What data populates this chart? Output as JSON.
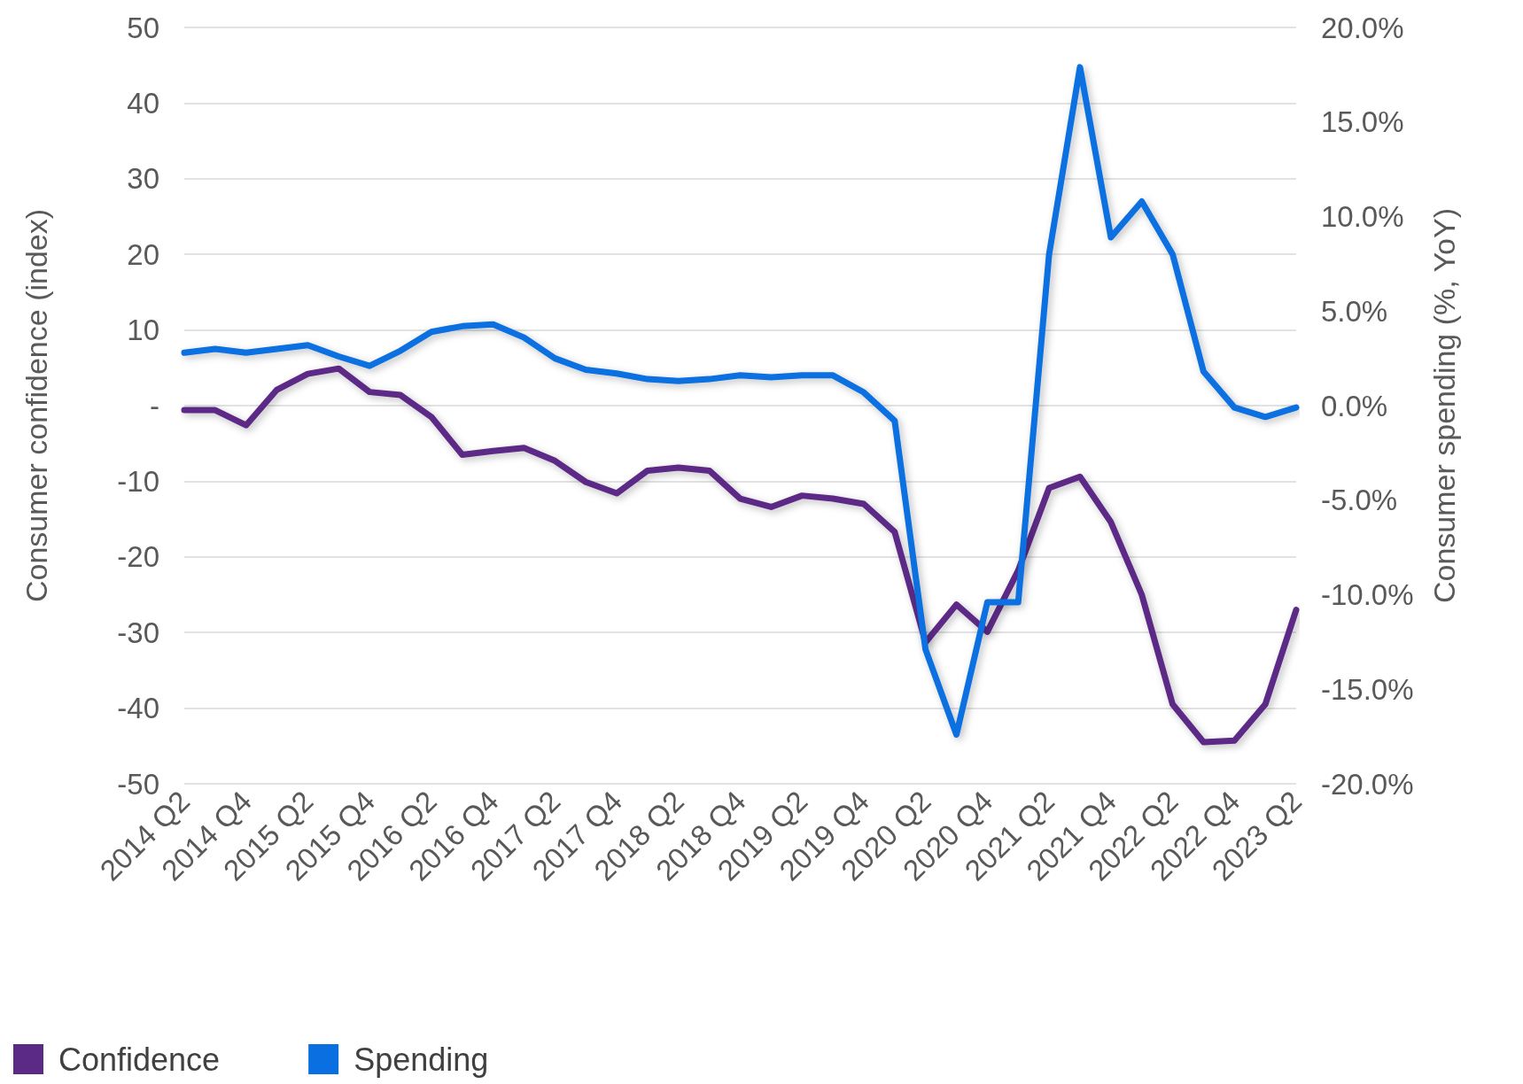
{
  "chart_data": {
    "type": "line",
    "ylabel": "Consumer confidence (index)",
    "y2label": "Consumer spending (%, YoY)",
    "categories": [
      "2014 Q2",
      null,
      "2014 Q4",
      null,
      "2015 Q2",
      null,
      "2015 Q4",
      null,
      "2016 Q2",
      null,
      "2016 Q4",
      null,
      "2017 Q2",
      null,
      "2017 Q4",
      null,
      "2018 Q2",
      null,
      "2018 Q4",
      null,
      "2019 Q2",
      null,
      "2019 Q4",
      null,
      "2020 Q2",
      null,
      "2020 Q4",
      null,
      "2021 Q2",
      null,
      "2021 Q4",
      null,
      "2022 Q2",
      null,
      "2022 Q4",
      null,
      "2023 Q2"
    ],
    "series": [
      {
        "name": "Confidence",
        "color": "#5b2a86",
        "values": [
          -0.6,
          -0.6,
          -2.6,
          2.1,
          4.2,
          4.9,
          1.8,
          1.4,
          -1.5,
          -6.5,
          -6.0,
          -5.6,
          -7.3,
          -10.1,
          -11.6,
          -8.6,
          -8.2,
          -8.6,
          -12.3,
          -13.4,
          -11.9,
          -12.3,
          -13.0,
          -16.7,
          -31.3,
          -26.3,
          -29.9,
          -21.8,
          -10.9,
          -9.4,
          -15.4,
          -25.0,
          -39.5,
          -44.5,
          -44.3,
          -39.5,
          -27.0
        ]
      },
      {
        "name": "Spending",
        "color": "#0a6fe0",
        "axis": "y2",
        "values": [
          2.8,
          3.0,
          2.8,
          3.0,
          3.2,
          2.6,
          2.1,
          2.9,
          3.9,
          4.2,
          4.3,
          3.6,
          2.5,
          1.9,
          1.7,
          1.4,
          1.3,
          1.4,
          1.6,
          1.5,
          1.6,
          1.6,
          0.7,
          -0.8,
          -12.9,
          -17.4,
          -10.4,
          -10.4,
          8.0,
          17.9,
          8.9,
          10.8,
          8.0,
          1.8,
          -0.1,
          -0.6,
          -0.1
        ]
      }
    ],
    "ylim": [
      -50,
      50
    ],
    "yticks": [
      -50,
      -40,
      -30,
      -20,
      -10,
      {
        "value": 0,
        "label": "-"
      },
      10,
      20,
      30,
      40,
      50
    ],
    "y2lim": [
      -20,
      20
    ],
    "y2ticks": [
      {
        "value": -20,
        "label": "-20.0%"
      },
      {
        "value": -15,
        "label": "-15.0%"
      },
      {
        "value": -10,
        "label": "-10.0%"
      },
      {
        "value": -5,
        "label": "-5.0%"
      },
      {
        "value": 0,
        "label": "0.0%"
      },
      {
        "value": 5,
        "label": "5.0%"
      },
      {
        "value": 10,
        "label": "10.0%"
      },
      {
        "value": 15,
        "label": "15.0%"
      },
      {
        "value": 20,
        "label": "20.0%"
      }
    ],
    "grid": "y",
    "legend": "bottom left",
    "marker": "none",
    "line_style": "solid"
  }
}
